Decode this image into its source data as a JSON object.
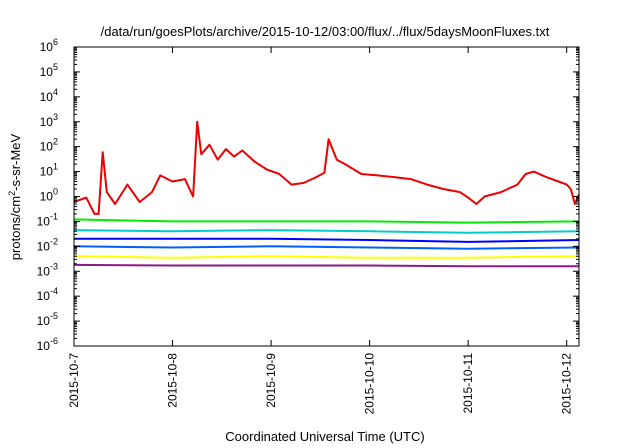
{
  "chart_data": {
    "type": "line",
    "title": "/data/run/goesPlots/archive/2015-10-12/03:00/flux/../flux/5daysMoonFluxes.txt",
    "xlabel": "Coordinated Universal Time (UTC)",
    "ylabel": {
      "prefix": "protons/cm",
      "sup": "2",
      "suffix": "-s-sr-MeV"
    },
    "yscale": "log",
    "ylim": [
      1e-06,
      1000000.0
    ],
    "xlim": [
      "2015-10-07",
      "2015-10-12 03:00"
    ],
    "y_ticks": [
      {
        "base": "10",
        "exp": "-6"
      },
      {
        "base": "10",
        "exp": "-5"
      },
      {
        "base": "10",
        "exp": "-4"
      },
      {
        "base": "10",
        "exp": "-3"
      },
      {
        "base": "10",
        "exp": "-2"
      },
      {
        "base": "10",
        "exp": "-1"
      },
      {
        "base": "10",
        "exp": "0"
      },
      {
        "base": "10",
        "exp": "1"
      },
      {
        "base": "10",
        "exp": "2"
      },
      {
        "base": "10",
        "exp": "3"
      },
      {
        "base": "10",
        "exp": "4"
      },
      {
        "base": "10",
        "exp": "5"
      },
      {
        "base": "10",
        "exp": "6"
      }
    ],
    "x_ticks": [
      "2015-10-7",
      "2015-10-8",
      "2015-10-9",
      "2015-10-10",
      "2015-10-11",
      "2015-10-12"
    ],
    "grid": false,
    "legend": false,
    "series": [
      {
        "color": "#ee0000",
        "points": [
          [
            "2015-10-07 00:00",
            0.6
          ],
          [
            "2015-10-07 03:00",
            0.9
          ],
          [
            "2015-10-07 05:00",
            0.2
          ],
          [
            "2015-10-07 06:00",
            0.2
          ],
          [
            "2015-10-07 07:00",
            60
          ],
          [
            "2015-10-07 08:00",
            1.5
          ],
          [
            "2015-10-07 10:00",
            0.5
          ],
          [
            "2015-10-07 13:00",
            3
          ],
          [
            "2015-10-07 16:00",
            0.6
          ],
          [
            "2015-10-07 19:00",
            1.5
          ],
          [
            "2015-10-07 21:00",
            7
          ],
          [
            "2015-10-08 00:00",
            4
          ],
          [
            "2015-10-08 03:00",
            5
          ],
          [
            "2015-10-08 05:00",
            1
          ],
          [
            "2015-10-08 06:00",
            1000
          ],
          [
            "2015-10-08 07:00",
            50
          ],
          [
            "2015-10-08 09:00",
            120
          ],
          [
            "2015-10-08 11:00",
            30
          ],
          [
            "2015-10-08 13:00",
            80
          ],
          [
            "2015-10-08 15:00",
            40
          ],
          [
            "2015-10-08 17:00",
            70
          ],
          [
            "2015-10-08 20:00",
            25
          ],
          [
            "2015-10-08 23:00",
            12
          ],
          [
            "2015-10-09 02:00",
            8
          ],
          [
            "2015-10-09 05:00",
            3
          ],
          [
            "2015-10-09 08:00",
            3.5
          ],
          [
            "2015-10-09 11:00",
            6
          ],
          [
            "2015-10-09 13:00",
            9
          ],
          [
            "2015-10-09 14:00",
            200
          ],
          [
            "2015-10-09 16:00",
            30
          ],
          [
            "2015-10-09 18:00",
            20
          ],
          [
            "2015-10-09 22:00",
            8
          ],
          [
            "2015-10-10 02:00",
            7
          ],
          [
            "2015-10-10 06:00",
            6
          ],
          [
            "2015-10-10 10:00",
            5
          ],
          [
            "2015-10-10 14:00",
            3
          ],
          [
            "2015-10-10 18:00",
            2
          ],
          [
            "2015-10-10 22:00",
            1.5
          ],
          [
            "2015-10-11 00:00",
            0.9
          ],
          [
            "2015-10-11 02:00",
            0.5
          ],
          [
            "2015-10-11 04:00",
            1
          ],
          [
            "2015-10-11 08:00",
            1.5
          ],
          [
            "2015-10-11 12:00",
            3
          ],
          [
            "2015-10-11 14:00",
            8
          ],
          [
            "2015-10-11 16:00",
            10
          ],
          [
            "2015-10-11 19:00",
            6
          ],
          [
            "2015-10-11 22:00",
            4
          ],
          [
            "2015-10-12 00:00",
            3
          ],
          [
            "2015-10-12 01:00",
            2
          ],
          [
            "2015-10-12 02:00",
            0.5
          ],
          [
            "2015-10-12 03:00",
            1.2
          ]
        ]
      },
      {
        "color": "#00ee00",
        "points": [
          [
            "2015-10-07 00:00",
            0.12
          ],
          [
            "2015-10-08 00:00",
            0.1
          ],
          [
            "2015-10-09 00:00",
            0.1
          ],
          [
            "2015-10-10 00:00",
            0.1
          ],
          [
            "2015-10-11 00:00",
            0.09
          ],
          [
            "2015-10-12 03:00",
            0.1
          ]
        ]
      },
      {
        "color": "#00cccc",
        "points": [
          [
            "2015-10-07 00:00",
            0.045
          ],
          [
            "2015-10-08 00:00",
            0.04
          ],
          [
            "2015-10-09 00:00",
            0.045
          ],
          [
            "2015-10-10 00:00",
            0.04
          ],
          [
            "2015-10-11 00:00",
            0.035
          ],
          [
            "2015-10-12 03:00",
            0.04
          ]
        ]
      },
      {
        "color": "#0000ff",
        "points": [
          [
            "2015-10-07 00:00",
            0.02
          ],
          [
            "2015-10-08 00:00",
            0.02
          ],
          [
            "2015-10-09 00:00",
            0.02
          ],
          [
            "2015-10-10 00:00",
            0.018
          ],
          [
            "2015-10-11 00:00",
            0.015
          ],
          [
            "2015-10-12 03:00",
            0.018
          ]
        ]
      },
      {
        "color": "#0060ff",
        "points": [
          [
            "2015-10-07 00:00",
            0.01
          ],
          [
            "2015-10-08 00:00",
            0.009
          ],
          [
            "2015-10-09 00:00",
            0.01
          ],
          [
            "2015-10-10 00:00",
            0.009
          ],
          [
            "2015-10-11 00:00",
            0.008
          ],
          [
            "2015-10-12 03:00",
            0.009
          ]
        ]
      },
      {
        "color": "#ffff00",
        "points": [
          [
            "2015-10-07 00:00",
            0.004
          ],
          [
            "2015-10-08 00:00",
            0.0035
          ],
          [
            "2015-10-09 00:00",
            0.004
          ],
          [
            "2015-10-10 00:00",
            0.0035
          ],
          [
            "2015-10-11 00:00",
            0.0035
          ],
          [
            "2015-10-12 03:00",
            0.004
          ]
        ]
      },
      {
        "color": "#8b1a89",
        "points": [
          [
            "2015-10-07 00:00",
            0.0018
          ],
          [
            "2015-10-08 00:00",
            0.0017
          ],
          [
            "2015-10-09 00:00",
            0.0017
          ],
          [
            "2015-10-10 00:00",
            0.0017
          ],
          [
            "2015-10-11 00:00",
            0.0016
          ],
          [
            "2015-10-12 03:00",
            0.0016
          ]
        ]
      }
    ]
  }
}
